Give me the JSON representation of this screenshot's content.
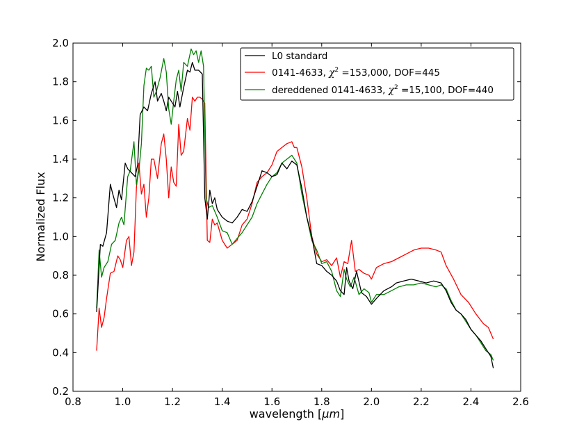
{
  "chart_data": {
    "type": "line",
    "xlabel_main": "wavelength ",
    "xlabel_unit_open": "[",
    "xlabel_unit_mu": "μm",
    "xlabel_unit_close": "]",
    "ylabel": "Normalized Flux",
    "xlim": [
      0.8,
      2.6
    ],
    "ylim": [
      0.2,
      2.0
    ],
    "xticks": [
      0.8,
      1.0,
      1.2,
      1.4,
      1.6,
      1.8,
      2.0,
      2.2,
      2.4,
      2.6
    ],
    "yticks": [
      0.2,
      0.4,
      0.6,
      0.8,
      1.0,
      1.2,
      1.4,
      1.6,
      1.8,
      2.0
    ],
    "xtick_labels": [
      "0.8",
      "1.0",
      "1.2",
      "1.4",
      "1.6",
      "1.8",
      "2.0",
      "2.2",
      "2.4",
      "2.6"
    ],
    "ytick_labels": [
      "0.2",
      "0.4",
      "0.6",
      "0.8",
      "1.0",
      "1.2",
      "1.4",
      "1.6",
      "1.8",
      "2.0"
    ],
    "grid": false,
    "legend_position": "top-right",
    "series": [
      {
        "name": "L0 standard",
        "legend_pre": "L0 standard",
        "legend_chi": "",
        "legend_post": "",
        "color": "#000000",
        "x": [
          0.895,
          0.91,
          0.92,
          0.935,
          0.95,
          0.96,
          0.975,
          0.985,
          0.995,
          1.01,
          1.02,
          1.035,
          1.05,
          1.06,
          1.07,
          1.085,
          1.1,
          1.115,
          1.13,
          1.14,
          1.155,
          1.165,
          1.175,
          1.185,
          1.2,
          1.21,
          1.22,
          1.23,
          1.245,
          1.26,
          1.27,
          1.28,
          1.29,
          1.305,
          1.32,
          1.33,
          1.34,
          1.35,
          1.36,
          1.37,
          1.38,
          1.4,
          1.42,
          1.44,
          1.46,
          1.48,
          1.5,
          1.52,
          1.54,
          1.56,
          1.58,
          1.6,
          1.62,
          1.64,
          1.66,
          1.68,
          1.7,
          1.72,
          1.74,
          1.76,
          1.78,
          1.8,
          1.82,
          1.84,
          1.86,
          1.875,
          1.89,
          1.9,
          1.91,
          1.925,
          1.94,
          1.96,
          1.98,
          2.0,
          2.02,
          2.05,
          2.08,
          2.1,
          2.13,
          2.16,
          2.19,
          2.22,
          2.25,
          2.28,
          2.3,
          2.32,
          2.34,
          2.36,
          2.38,
          2.4,
          2.42,
          2.44,
          2.46,
          2.48,
          2.49
        ],
        "y": [
          0.61,
          0.96,
          0.95,
          1.02,
          1.27,
          1.22,
          1.15,
          1.24,
          1.19,
          1.38,
          1.35,
          1.33,
          1.31,
          1.37,
          1.63,
          1.67,
          1.65,
          1.74,
          1.8,
          1.7,
          1.74,
          1.7,
          1.65,
          1.72,
          1.69,
          1.67,
          1.75,
          1.67,
          1.77,
          1.86,
          1.85,
          1.9,
          1.86,
          1.86,
          1.84,
          1.2,
          1.09,
          1.24,
          1.17,
          1.2,
          1.14,
          1.1,
          1.08,
          1.07,
          1.1,
          1.14,
          1.13,
          1.18,
          1.26,
          1.34,
          1.33,
          1.31,
          1.32,
          1.38,
          1.35,
          1.39,
          1.37,
          1.25,
          1.1,
          1.0,
          0.86,
          0.85,
          0.82,
          0.8,
          0.77,
          0.72,
          0.7,
          0.84,
          0.77,
          0.73,
          0.82,
          0.71,
          0.69,
          0.65,
          0.68,
          0.72,
          0.74,
          0.76,
          0.77,
          0.78,
          0.77,
          0.76,
          0.77,
          0.76,
          0.72,
          0.66,
          0.62,
          0.6,
          0.57,
          0.52,
          0.49,
          0.46,
          0.42,
          0.38,
          0.32
        ]
      },
      {
        "name": "0141-4633",
        "legend_pre": "0141-4633, ",
        "legend_chi": "χ",
        "legend_post": " =153,000, DOF=445",
        "color": "#ff0000",
        "x": [
          0.895,
          0.905,
          0.915,
          0.925,
          0.935,
          0.95,
          0.965,
          0.98,
          0.99,
          1.0,
          1.015,
          1.025,
          1.035,
          1.045,
          1.055,
          1.065,
          1.075,
          1.085,
          1.095,
          1.105,
          1.115,
          1.125,
          1.14,
          1.155,
          1.165,
          1.175,
          1.185,
          1.195,
          1.205,
          1.215,
          1.225,
          1.235,
          1.245,
          1.26,
          1.27,
          1.28,
          1.29,
          1.3,
          1.31,
          1.32,
          1.33,
          1.34,
          1.35,
          1.36,
          1.37,
          1.38,
          1.4,
          1.42,
          1.44,
          1.46,
          1.48,
          1.5,
          1.52,
          1.54,
          1.56,
          1.58,
          1.6,
          1.62,
          1.64,
          1.66,
          1.68,
          1.69,
          1.7,
          1.72,
          1.74,
          1.76,
          1.78,
          1.8,
          1.82,
          1.84,
          1.86,
          1.875,
          1.89,
          1.905,
          1.92,
          1.935,
          1.95,
          1.97,
          1.99,
          2.0,
          2.02,
          2.05,
          2.08,
          2.11,
          2.14,
          2.17,
          2.2,
          2.23,
          2.26,
          2.28,
          2.3,
          2.33,
          2.36,
          2.39,
          2.42,
          2.45,
          2.47,
          2.49
        ],
        "y": [
          0.41,
          0.63,
          0.53,
          0.58,
          0.68,
          0.81,
          0.82,
          0.9,
          0.88,
          0.84,
          0.98,
          1.0,
          0.85,
          0.92,
          1.25,
          1.38,
          1.22,
          1.27,
          1.1,
          1.2,
          1.4,
          1.4,
          1.3,
          1.48,
          1.53,
          1.4,
          1.2,
          1.36,
          1.28,
          1.26,
          1.58,
          1.42,
          1.44,
          1.61,
          1.55,
          1.72,
          1.7,
          1.72,
          1.72,
          1.71,
          1.69,
          0.98,
          0.97,
          1.09,
          1.06,
          1.07,
          0.98,
          0.94,
          0.96,
          0.98,
          1.06,
          1.09,
          1.17,
          1.28,
          1.31,
          1.33,
          1.37,
          1.44,
          1.46,
          1.48,
          1.49,
          1.46,
          1.46,
          1.36,
          1.2,
          1.0,
          0.91,
          0.87,
          0.88,
          0.85,
          0.89,
          0.79,
          0.87,
          0.86,
          0.98,
          0.82,
          0.83,
          0.81,
          0.8,
          0.78,
          0.84,
          0.86,
          0.87,
          0.89,
          0.91,
          0.93,
          0.94,
          0.94,
          0.93,
          0.92,
          0.85,
          0.78,
          0.7,
          0.66,
          0.6,
          0.55,
          0.53,
          0.47
        ]
      },
      {
        "name": "dereddened 0141-4633",
        "legend_pre": "dereddened 0141-4633, ",
        "legend_chi": "χ",
        "legend_post": " =15,100, DOF=440",
        "color": "#007f00",
        "x": [
          0.895,
          0.905,
          0.915,
          0.925,
          0.94,
          0.955,
          0.97,
          0.985,
          0.995,
          1.005,
          1.02,
          1.03,
          1.045,
          1.055,
          1.065,
          1.075,
          1.085,
          1.095,
          1.105,
          1.115,
          1.125,
          1.135,
          1.15,
          1.165,
          1.175,
          1.185,
          1.195,
          1.205,
          1.215,
          1.225,
          1.235,
          1.245,
          1.26,
          1.275,
          1.285,
          1.295,
          1.305,
          1.315,
          1.325,
          1.335,
          1.345,
          1.36,
          1.38,
          1.4,
          1.42,
          1.44,
          1.46,
          1.48,
          1.5,
          1.52,
          1.54,
          1.56,
          1.58,
          1.6,
          1.62,
          1.64,
          1.66,
          1.68,
          1.7,
          1.72,
          1.74,
          1.76,
          1.78,
          1.8,
          1.82,
          1.84,
          1.86,
          1.875,
          1.89,
          1.9,
          1.915,
          1.93,
          1.95,
          1.97,
          1.99,
          2.0,
          2.02,
          2.05,
          2.08,
          2.11,
          2.14,
          2.17,
          2.2,
          2.23,
          2.26,
          2.28,
          2.3,
          2.32,
          2.34,
          2.36,
          2.38,
          2.4,
          2.42,
          2.44,
          2.46,
          2.48,
          2.49
        ],
        "y": [
          0.63,
          0.93,
          0.79,
          0.84,
          0.87,
          0.96,
          0.98,
          1.07,
          1.1,
          1.06,
          1.31,
          1.34,
          1.49,
          1.27,
          1.34,
          1.48,
          1.78,
          1.87,
          1.86,
          1.88,
          1.72,
          1.75,
          1.82,
          1.92,
          1.85,
          1.66,
          1.58,
          1.7,
          1.81,
          1.86,
          1.75,
          1.9,
          1.88,
          1.97,
          1.94,
          1.96,
          1.9,
          1.96,
          1.88,
          1.2,
          1.15,
          1.16,
          1.1,
          1.03,
          1.02,
          0.96,
          0.99,
          1.02,
          1.06,
          1.1,
          1.17,
          1.22,
          1.27,
          1.31,
          1.33,
          1.38,
          1.4,
          1.42,
          1.38,
          1.22,
          1.1,
          0.98,
          0.93,
          0.86,
          0.87,
          0.82,
          0.72,
          0.69,
          0.83,
          0.78,
          0.74,
          0.79,
          0.7,
          0.73,
          0.71,
          0.66,
          0.7,
          0.7,
          0.72,
          0.74,
          0.75,
          0.75,
          0.76,
          0.75,
          0.74,
          0.75,
          0.73,
          0.67,
          0.62,
          0.6,
          0.56,
          0.52,
          0.49,
          0.45,
          0.41,
          0.39,
          0.36
        ]
      }
    ]
  }
}
